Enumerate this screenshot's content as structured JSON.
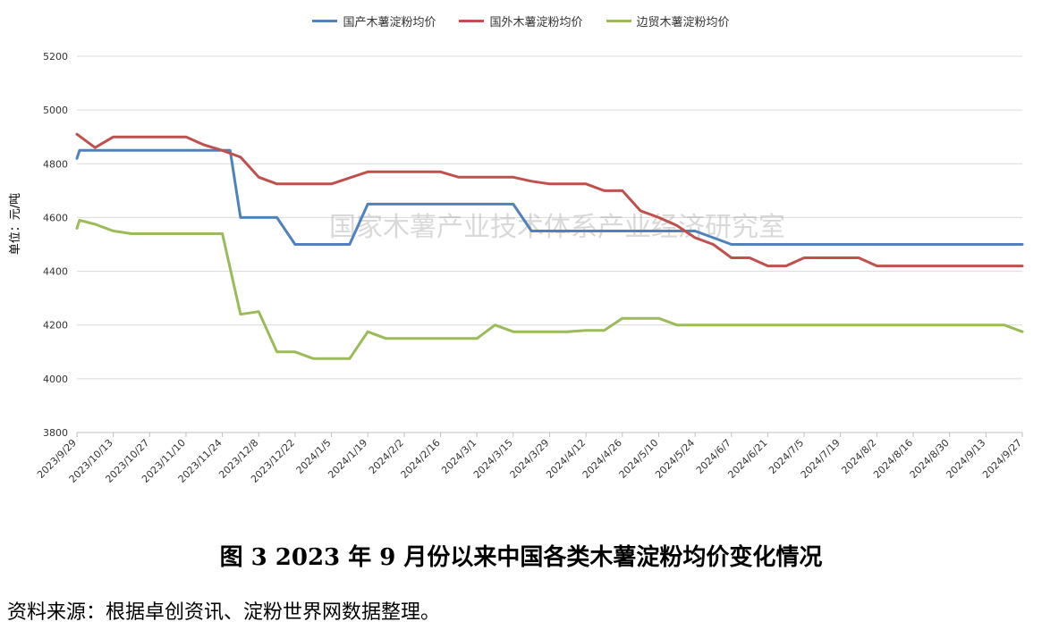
{
  "caption": "图 3   2023 年 9 月份以来中国各类木薯淀粉均价变化情况",
  "source": "资料来源：根据卓创资讯、淀粉世界网数据整理。",
  "watermark": "国家木薯产业技术体系产业经济研究室",
  "chart_data": {
    "type": "line",
    "title": "",
    "xlabel": "",
    "ylabel": "单位：元/吨",
    "ylim": [
      3800,
      5200
    ],
    "yticks": [
      3800,
      4000,
      4200,
      4400,
      4600,
      4800,
      5000,
      5200
    ],
    "grid": true,
    "legend_position": "top",
    "x_ticks": [
      "2023/9/29",
      "2023/10/13",
      "2023/10/27",
      "2023/11/10",
      "2023/11/24",
      "2023/12/8",
      "2023/12/22",
      "2024/1/5",
      "2024/1/19",
      "2024/2/2",
      "2024/2/16",
      "2024/3/1",
      "2024/3/15",
      "2024/3/29",
      "2024/4/12",
      "2024/4/26",
      "2024/5/10",
      "2024/5/24",
      "2024/6/7",
      "2024/6/21",
      "2024/7/5",
      "2024/7/19",
      "2024/8/2",
      "2024/8/16",
      "2024/8/30",
      "2024/9/13",
      "2024/9/27"
    ],
    "series": [
      {
        "name": "国产木薯淀粉均价",
        "color": "#4f81bd",
        "points": [
          [
            "2023/9/29",
            4820
          ],
          [
            "2023/9/30",
            4850
          ],
          [
            "2023/11/27",
            4850
          ],
          [
            "2023/12/1",
            4600
          ],
          [
            "2023/12/15",
            4600
          ],
          [
            "2023/12/22",
            4500
          ],
          [
            "2024/1/12",
            4500
          ],
          [
            "2024/1/19",
            4650
          ],
          [
            "2024/3/15",
            4650
          ],
          [
            "2024/3/22",
            4550
          ],
          [
            "2024/5/24",
            4550
          ],
          [
            "2024/6/7",
            4500
          ],
          [
            "2024/9/27",
            4500
          ]
        ]
      },
      {
        "name": "国外木薯淀粉均价",
        "color": "#c0504d",
        "points": [
          [
            "2023/9/29",
            4910
          ],
          [
            "2023/10/6",
            4860
          ],
          [
            "2023/10/13",
            4900
          ],
          [
            "2023/11/10",
            4900
          ],
          [
            "2023/11/17",
            4870
          ],
          [
            "2023/11/24",
            4850
          ],
          [
            "2023/12/1",
            4825
          ],
          [
            "2023/12/8",
            4750
          ],
          [
            "2023/12/15",
            4725
          ],
          [
            "2024/1/5",
            4725
          ],
          [
            "2024/1/19",
            4770
          ],
          [
            "2024/2/16",
            4770
          ],
          [
            "2024/2/23",
            4750
          ],
          [
            "2024/3/15",
            4750
          ],
          [
            "2024/3/22",
            4735
          ],
          [
            "2024/3/29",
            4725
          ],
          [
            "2024/4/12",
            4725
          ],
          [
            "2024/4/19",
            4700
          ],
          [
            "2024/4/26",
            4700
          ],
          [
            "2024/5/3",
            4625
          ],
          [
            "2024/5/10",
            4600
          ],
          [
            "2024/5/17",
            4570
          ],
          [
            "2024/5/24",
            4525
          ],
          [
            "2024/5/31",
            4500
          ],
          [
            "2024/6/7",
            4450
          ],
          [
            "2024/6/14",
            4450
          ],
          [
            "2024/6/21",
            4420
          ],
          [
            "2024/6/28",
            4420
          ],
          [
            "2024/7/5",
            4450
          ],
          [
            "2024/7/26",
            4450
          ],
          [
            "2024/8/2",
            4420
          ],
          [
            "2024/9/27",
            4420
          ]
        ]
      },
      {
        "name": "边贸木薯淀粉均价",
        "color": "#9bbb59",
        "points": [
          [
            "2023/9/29",
            4560
          ],
          [
            "2023/9/30",
            4590
          ],
          [
            "2023/10/6",
            4575
          ],
          [
            "2023/10/13",
            4550
          ],
          [
            "2023/10/20",
            4540
          ],
          [
            "2023/11/24",
            4540
          ],
          [
            "2023/12/1",
            4240
          ],
          [
            "2023/12/8",
            4250
          ],
          [
            "2023/12/15",
            4100
          ],
          [
            "2023/12/22",
            4100
          ],
          [
            "2023/12/29",
            4075
          ],
          [
            "2024/1/12",
            4075
          ],
          [
            "2024/1/19",
            4175
          ],
          [
            "2024/1/26",
            4150
          ],
          [
            "2024/3/1",
            4150
          ],
          [
            "2024/3/8",
            4200
          ],
          [
            "2024/3/15",
            4175
          ],
          [
            "2024/4/5",
            4175
          ],
          [
            "2024/4/12",
            4180
          ],
          [
            "2024/4/19",
            4180
          ],
          [
            "2024/4/26",
            4225
          ],
          [
            "2024/5/10",
            4225
          ],
          [
            "2024/5/17",
            4200
          ],
          [
            "2024/9/20",
            4200
          ],
          [
            "2024/9/27",
            4175
          ]
        ]
      }
    ]
  }
}
